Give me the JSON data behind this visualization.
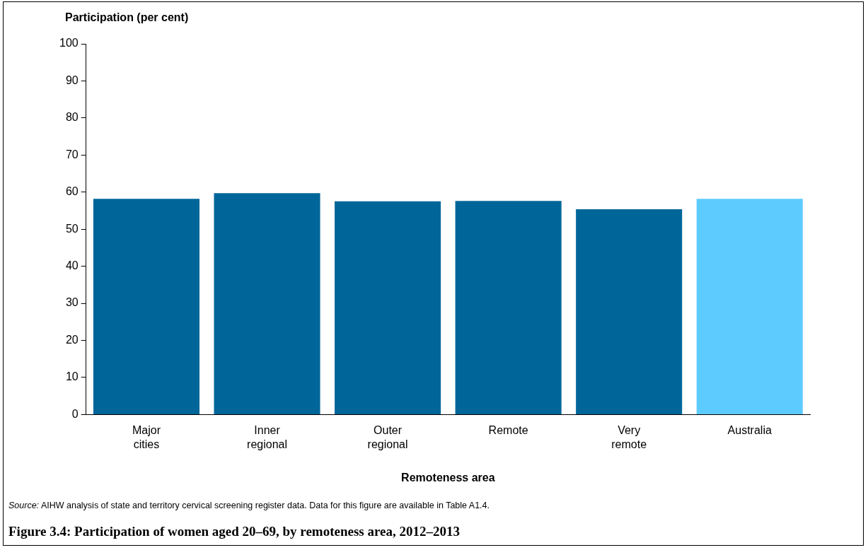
{
  "chart_data": {
    "type": "bar",
    "title": "Figure 3.4: Participation of women aged 20–69, by remoteness area, 2012–2013",
    "xlabel": "Remoteness area",
    "ylabel": "Participation (per cent)",
    "categories": [
      "Major cities",
      "Inner regional",
      "Outer regional",
      "Remote",
      "Very remote",
      "Australia"
    ],
    "values": [
      58.2,
      59.7,
      57.5,
      57.6,
      55.4,
      58.2
    ],
    "colors": [
      "#006699",
      "#006699",
      "#006699",
      "#006699",
      "#006699",
      "#5ecbff"
    ],
    "ylim": [
      0,
      100
    ],
    "yticks": [
      0,
      10,
      20,
      30,
      40,
      50,
      60,
      70,
      80,
      90,
      100
    ],
    "grid": false,
    "legend": false,
    "annotations": [
      "Source: AIHW analysis of state and territory cervical screening register data. Data for this figure are available in Table A1.4."
    ]
  }
}
